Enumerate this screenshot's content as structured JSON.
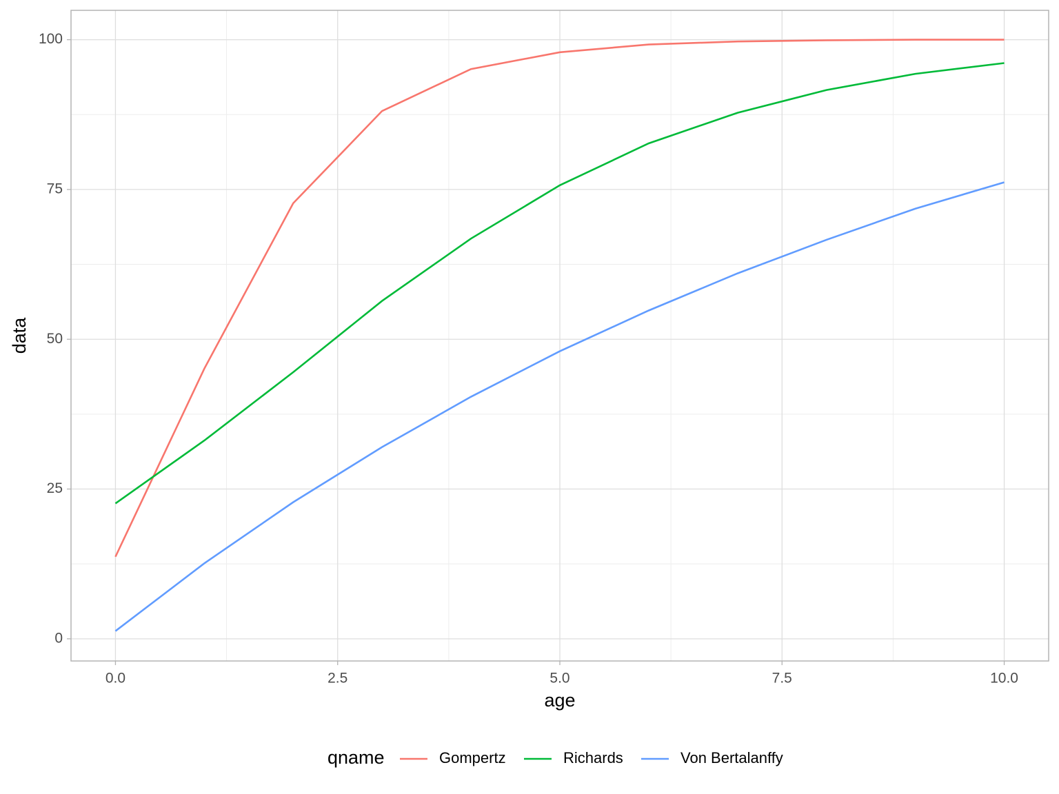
{
  "chart_data": {
    "type": "line",
    "x": [
      0,
      1,
      2,
      3,
      4,
      5,
      6,
      7,
      8,
      9,
      10
    ],
    "series": [
      {
        "name": "Gompertz",
        "color": "#f8766d",
        "values": [
          13.7,
          45.1,
          72.7,
          88.1,
          95.1,
          97.9,
          99.2,
          99.7,
          99.9,
          100,
          100
        ]
      },
      {
        "name": "Richards",
        "color": "#00ba38",
        "values": [
          22.6,
          33.1,
          44.5,
          56.4,
          66.8,
          75.7,
          82.7,
          87.8,
          91.6,
          94.3,
          96.1
        ]
      },
      {
        "name": "Von Bertalanffy",
        "color": "#619cff",
        "values": [
          1.3,
          12.6,
          22.8,
          32.0,
          40.4,
          48.0,
          54.8,
          61.0,
          66.6,
          71.8,
          76.2
        ]
      }
    ],
    "xlabel": "age",
    "ylabel": "data",
    "legend_title": "qname",
    "legend_position": "bottom",
    "xlim": [
      -0.5,
      10.5
    ],
    "ylim": [
      -3.7,
      104.9
    ],
    "xticks": [
      {
        "value": 0,
        "label": "0.0"
      },
      2.5,
      {
        "value": 5,
        "label": "5.0"
      },
      7.5,
      {
        "value": 10,
        "label": "10.0"
      }
    ],
    "yticks": [
      0,
      25,
      50,
      75,
      100
    ],
    "grid": true
  }
}
